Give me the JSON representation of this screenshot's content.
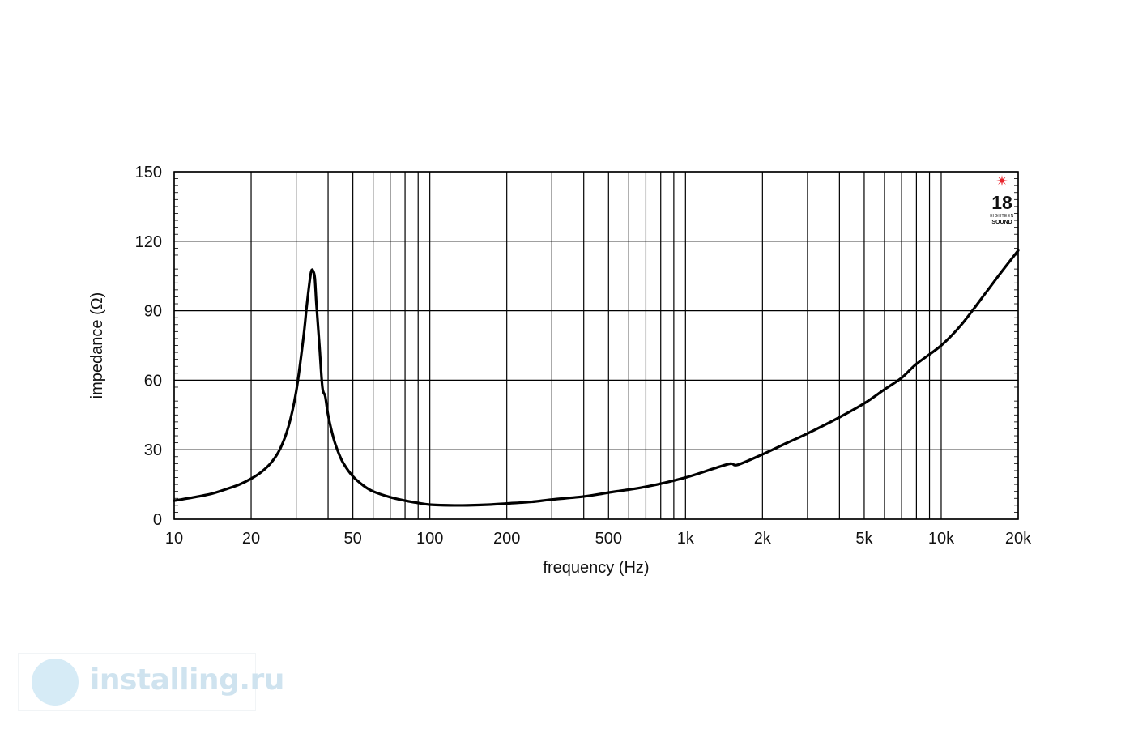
{
  "chart_data": {
    "type": "line",
    "title": "",
    "xlabel": "frequency (Hz)",
    "ylabel": "impedance (Ω)",
    "x_scale": "log",
    "xlim": [
      10,
      20000
    ],
    "ylim": [
      0,
      150
    ],
    "grid": true,
    "x_major_grid": [
      10,
      20,
      30,
      40,
      50,
      60,
      70,
      80,
      90,
      100,
      200,
      300,
      400,
      500,
      600,
      700,
      800,
      900,
      1000,
      2000,
      3000,
      4000,
      5000,
      6000,
      7000,
      8000,
      9000,
      10000,
      20000
    ],
    "x_ticks": [
      {
        "value": 10,
        "label": "10"
      },
      {
        "value": 20,
        "label": "20"
      },
      {
        "value": 50,
        "label": "50"
      },
      {
        "value": 100,
        "label": "100"
      },
      {
        "value": 200,
        "label": "200"
      },
      {
        "value": 500,
        "label": "500"
      },
      {
        "value": 1000,
        "label": "1k"
      },
      {
        "value": 2000,
        "label": "2k"
      },
      {
        "value": 5000,
        "label": "5k"
      },
      {
        "value": 10000,
        "label": "10k"
      },
      {
        "value": 20000,
        "label": "20k"
      }
    ],
    "y_ticks": [
      {
        "value": 0,
        "label": "0"
      },
      {
        "value": 30,
        "label": "30"
      },
      {
        "value": 60,
        "label": "60"
      },
      {
        "value": 90,
        "label": "90"
      },
      {
        "value": 120,
        "label": "120"
      },
      {
        "value": 150,
        "label": "150"
      }
    ],
    "series": [
      {
        "color": "#000000",
        "x": [
          10,
          12,
          14,
          16,
          18,
          20,
          22,
          24,
          26,
          28,
          30,
          32,
          33,
          34,
          34.5,
          35,
          35.5,
          36,
          37,
          38,
          39,
          40,
          42,
          44,
          46,
          50,
          55,
          60,
          70,
          80,
          90,
          100,
          120,
          140,
          170,
          200,
          250,
          300,
          400,
          500,
          700,
          1000,
          1300,
          1500,
          1600,
          2000,
          2500,
          3000,
          4000,
          5000,
          6000,
          7000,
          8000,
          10000,
          12000,
          15000,
          17000,
          20000
        ],
        "y": [
          8,
          9.5,
          11,
          13,
          15,
          17.5,
          20.5,
          24.5,
          30.5,
          40,
          55,
          78,
          92,
          104,
          107.5,
          107,
          104,
          93,
          75,
          57,
          53,
          45,
          35,
          28.5,
          24,
          18.5,
          14.5,
          12,
          9.5,
          8,
          7,
          6.3,
          6,
          6,
          6.3,
          6.8,
          7.5,
          8.5,
          9.8,
          11.5,
          14,
          18,
          22,
          24,
          23.5,
          28,
          33,
          37,
          44,
          50,
          56,
          61,
          67,
          75,
          84,
          98,
          106,
          116
        ]
      }
    ]
  },
  "brand": {
    "number": "18",
    "small_text": "EIGHTEEN",
    "word": "SOUND",
    "star_color": "#e8242c"
  },
  "watermark": {
    "text": "installing.ru",
    "color": "#cfe3ef"
  }
}
